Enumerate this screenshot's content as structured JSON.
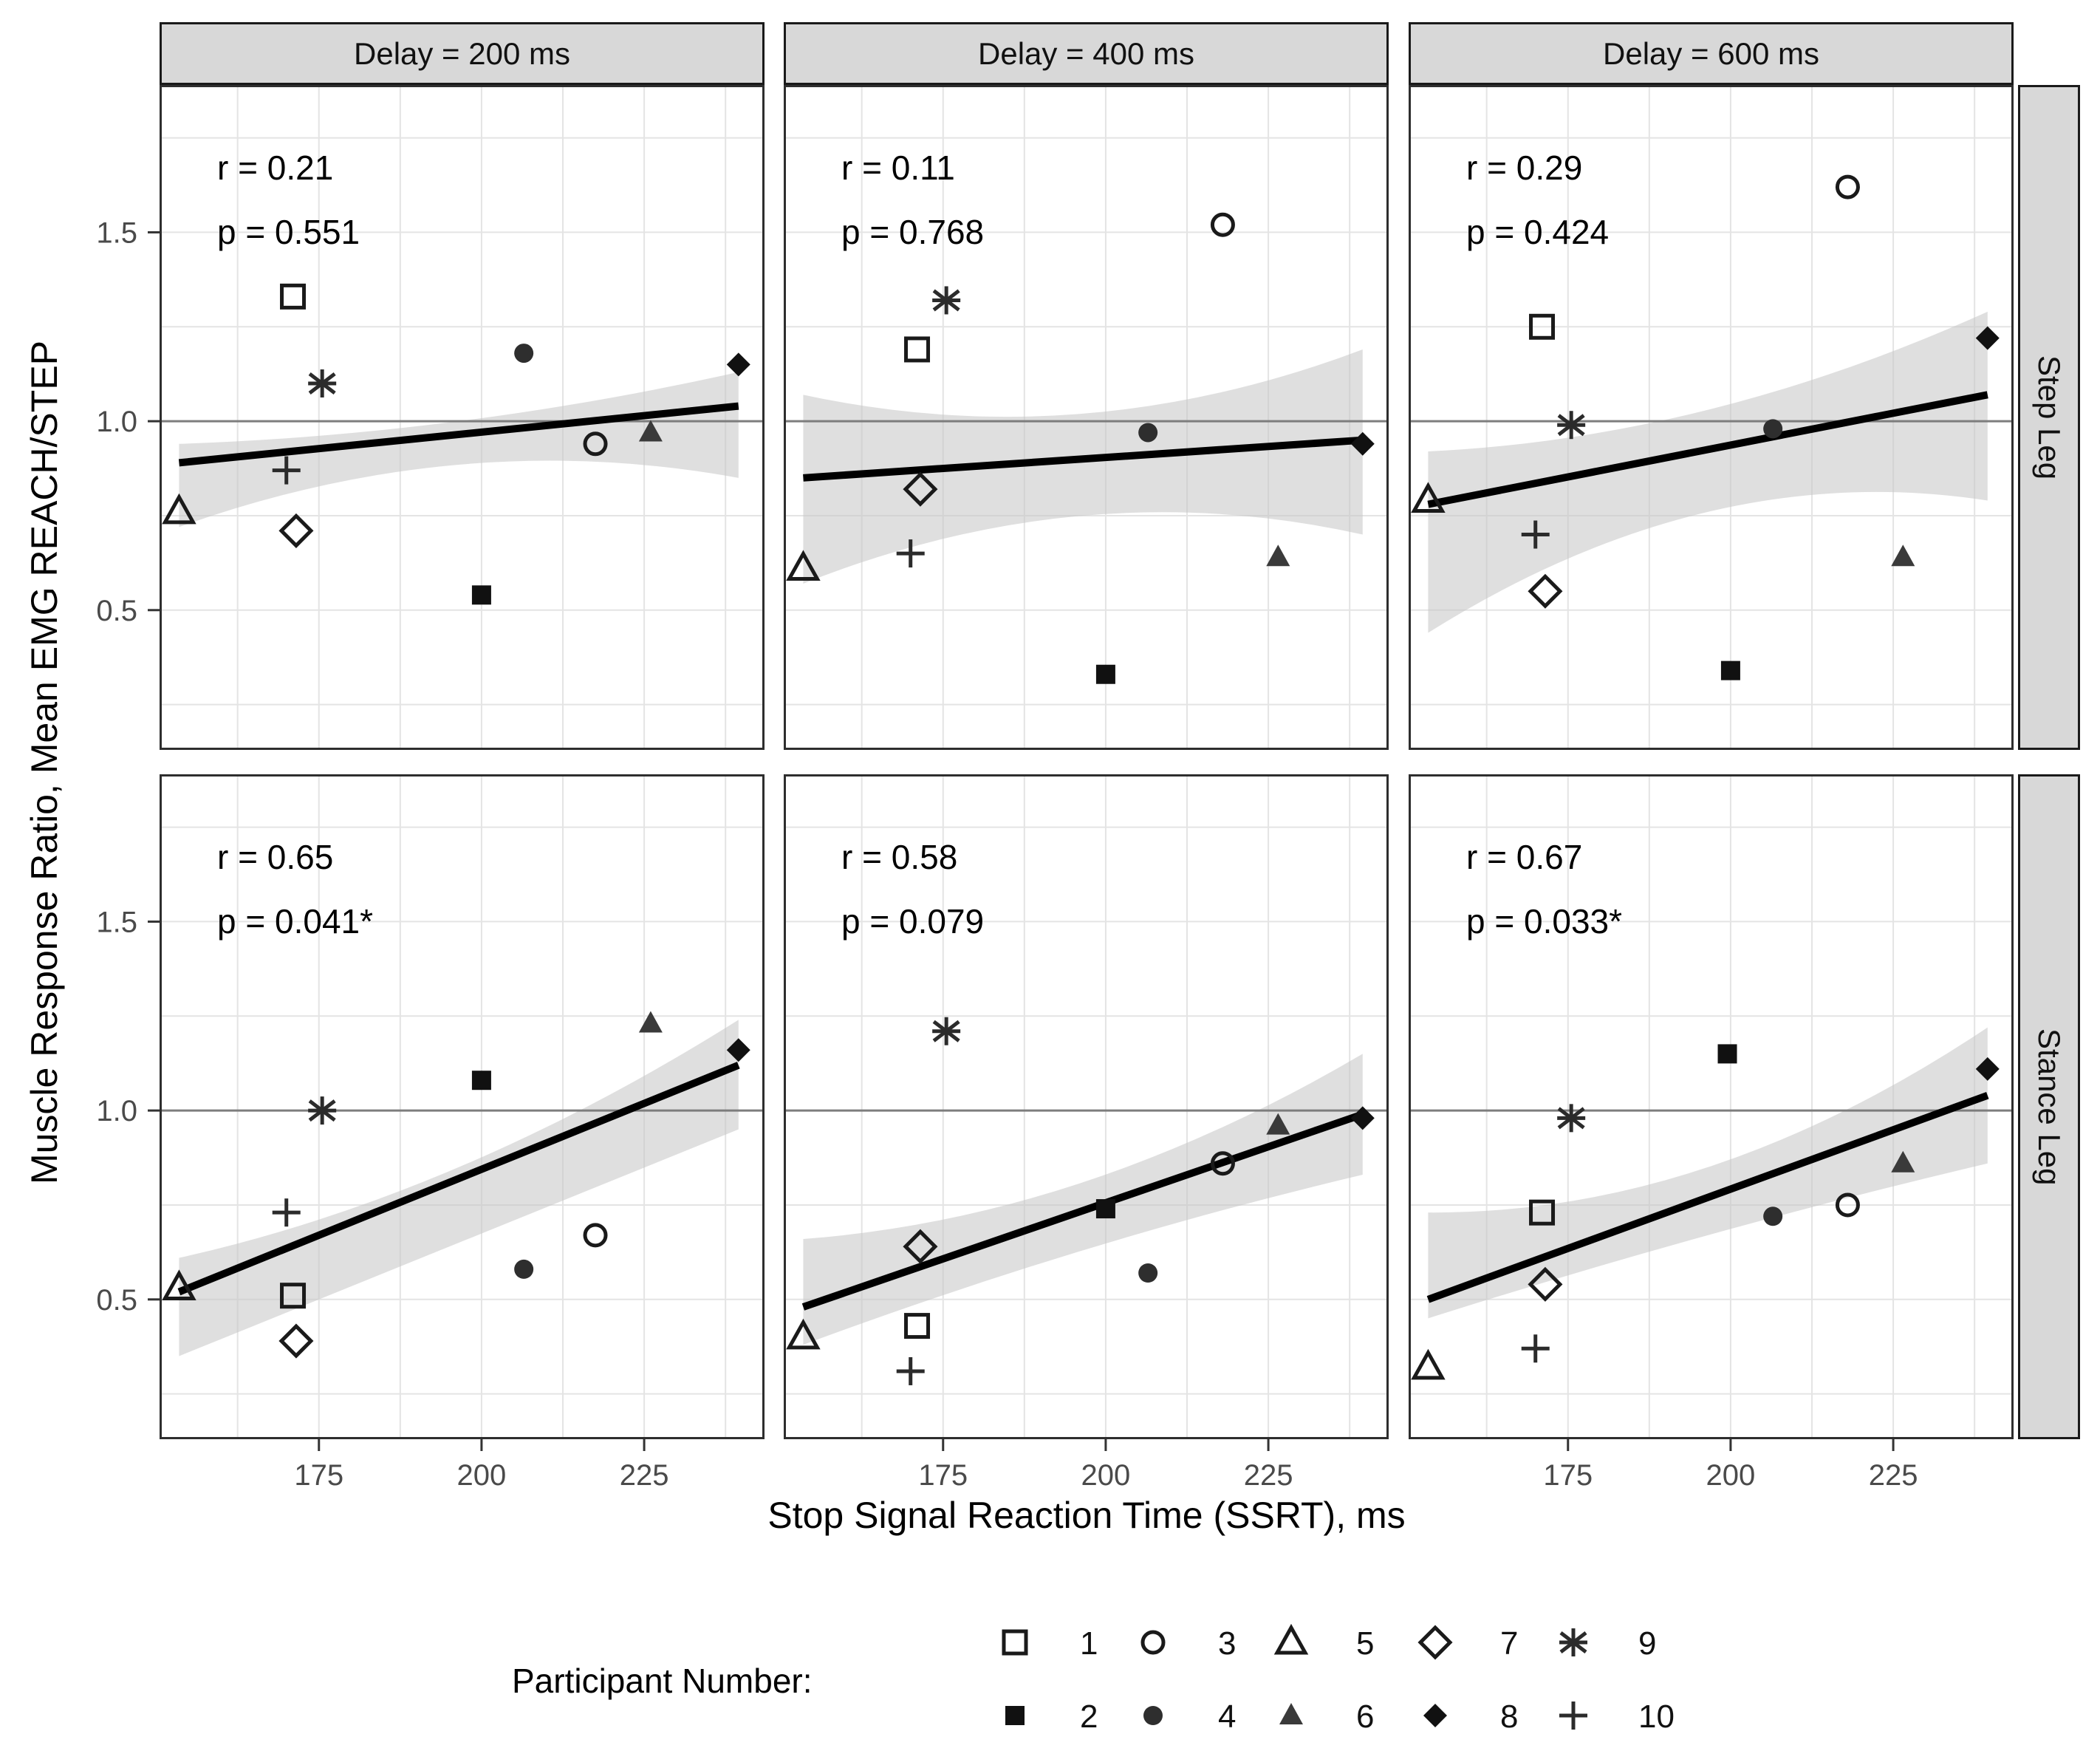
{
  "legend": {
    "title": "Participant Number:",
    "rows": [
      [
        {
          "marker": "open-square",
          "label": "1"
        },
        {
          "marker": "open-circle",
          "label": "3"
        },
        {
          "marker": "open-triangle",
          "label": "5"
        },
        {
          "marker": "open-diamond",
          "label": "7"
        },
        {
          "marker": "asterisk",
          "label": "9"
        }
      ],
      [
        {
          "marker": "filled-square",
          "label": "2"
        },
        {
          "marker": "filled-circle",
          "label": "4"
        },
        {
          "marker": "filled-triangle",
          "label": "6"
        },
        {
          "marker": "filled-diamond",
          "label": "8"
        },
        {
          "marker": "plus",
          "label": "10"
        }
      ]
    ]
  },
  "chart_data": {
    "type": "scatter",
    "facet_cols": [
      "Delay = 200 ms",
      "Delay = 400 ms",
      "Delay = 600 ms"
    ],
    "facet_rows": [
      "Step Leg",
      "Stance Leg"
    ],
    "xlabel": "Stop Signal Reaction Time (SSRT), ms",
    "ylabel": "Muscle Response Ratio, Mean EMG REACH/STEP",
    "xlim": [
      150.5,
      243.5
    ],
    "ylim": [
      0.13,
      1.89
    ],
    "x_ticks": [
      175,
      200,
      225
    ],
    "y_ticks": [
      0.5,
      1.0,
      1.5
    ],
    "x_gridlines": [
      162.5,
      175,
      187.5,
      200,
      212.5,
      225,
      237.5
    ],
    "y_gridlines": [
      0.25,
      0.5,
      0.75,
      1.0,
      1.25,
      1.5,
      1.75
    ],
    "reference_line_y": 1.0,
    "smooth_span": [
      153.5,
      239.5
    ],
    "legend_title": "Participant Number:",
    "legend_position": "bottom",
    "grid": true,
    "marker_by_participant": {
      "1": "open-square",
      "2": "filled-square",
      "3": "open-circle",
      "4": "filled-circle",
      "5": "open-triangle",
      "6": "filled-triangle",
      "7": "open-diamond",
      "8": "filled-diamond",
      "9": "asterisk",
      "10": "plus"
    },
    "panels": [
      {
        "facet_row": "Step Leg",
        "facet_col": "Delay = 200 ms",
        "r_label": "r = 0.21",
        "p_label": "p = 0.551",
        "regression": {
          "x": [
            153.5,
            239.5
          ],
          "y": [
            0.89,
            1.04
          ]
        },
        "ribbon": {
          "left": [
            0.72,
            0.94
          ],
          "mid": [
            0.885,
            1.0
          ],
          "right": [
            0.85,
            1.13
          ]
        },
        "points": [
          [
            1,
            171,
            1.33
          ],
          [
            2,
            200,
            0.54
          ],
          [
            3,
            217.5,
            0.94
          ],
          [
            4,
            206.5,
            1.18
          ],
          [
            5,
            153.5,
            0.76
          ],
          [
            6,
            226,
            0.97
          ],
          [
            7,
            171.5,
            0.71
          ],
          [
            8,
            239.5,
            1.15
          ],
          [
            9,
            175.5,
            1.1
          ],
          [
            10,
            170,
            0.87
          ]
        ]
      },
      {
        "facet_row": "Step Leg",
        "facet_col": "Delay = 400 ms",
        "r_label": "r = 0.11",
        "p_label": "p = 0.768",
        "regression": {
          "x": [
            153.5,
            239.5
          ],
          "y": [
            0.85,
            0.95
          ]
        },
        "ribbon": {
          "left": [
            0.57,
            1.07
          ],
          "mid": [
            0.75,
            1.02
          ],
          "right": [
            0.7,
            1.19
          ]
        },
        "points": [
          [
            1,
            171,
            1.19
          ],
          [
            2,
            200,
            0.33
          ],
          [
            3,
            218,
            1.52
          ],
          [
            4,
            206.5,
            0.97
          ],
          [
            5,
            153.5,
            0.61
          ],
          [
            6,
            226.5,
            0.64
          ],
          [
            7,
            171.5,
            0.82
          ],
          [
            8,
            239.5,
            0.94
          ],
          [
            9,
            175.5,
            1.32
          ],
          [
            10,
            170,
            0.65
          ]
        ]
      },
      {
        "facet_row": "Step Leg",
        "facet_col": "Delay = 600 ms",
        "r_label": "r = 0.29",
        "p_label": "p = 0.424",
        "regression": {
          "x": [
            153.5,
            239.5
          ],
          "y": [
            0.78,
            1.07
          ]
        },
        "ribbon": {
          "left": [
            0.44,
            0.92
          ],
          "mid": [
            0.76,
            1.03
          ],
          "right": [
            0.79,
            1.29
          ]
        },
        "points": [
          [
            1,
            171,
            1.25
          ],
          [
            2,
            200,
            0.34
          ],
          [
            3,
            218,
            1.62
          ],
          [
            4,
            206.5,
            0.98
          ],
          [
            5,
            153.5,
            0.79
          ],
          [
            6,
            226.5,
            0.64
          ],
          [
            7,
            171.5,
            0.55
          ],
          [
            8,
            239.5,
            1.22
          ],
          [
            9,
            175.5,
            0.99
          ],
          [
            10,
            170,
            0.7
          ]
        ]
      },
      {
        "facet_row": "Stance Leg",
        "facet_col": "Delay = 200 ms",
        "r_label": "r = 0.65",
        "p_label": "p = 0.041*",
        "regression": {
          "x": [
            153.5,
            239.5
          ],
          "y": [
            0.52,
            1.12
          ]
        },
        "ribbon": {
          "left": [
            0.35,
            0.61
          ],
          "mid": [
            0.65,
            0.85
          ],
          "right": [
            0.95,
            1.24
          ]
        },
        "points": [
          [
            1,
            171,
            0.51
          ],
          [
            2,
            200,
            1.08
          ],
          [
            3,
            217.5,
            0.67
          ],
          [
            4,
            206.5,
            0.58
          ],
          [
            5,
            153.5,
            0.53
          ],
          [
            6,
            226,
            1.23
          ],
          [
            7,
            171.5,
            0.39
          ],
          [
            8,
            239.5,
            1.16
          ],
          [
            9,
            175.5,
            1.0
          ],
          [
            10,
            170,
            0.73
          ]
        ]
      },
      {
        "facet_row": "Stance Leg",
        "facet_col": "Delay = 400 ms",
        "r_label": "r = 0.58",
        "p_label": "p = 0.079",
        "regression": {
          "x": [
            153.5,
            239.5
          ],
          "y": [
            0.48,
            0.99
          ]
        },
        "ribbon": {
          "left": [
            0.38,
            0.66
          ],
          "mid": [
            0.63,
            0.81
          ],
          "right": [
            0.83,
            1.15
          ]
        },
        "points": [
          [
            1,
            171,
            0.43
          ],
          [
            2,
            200,
            0.74
          ],
          [
            3,
            218,
            0.86
          ],
          [
            4,
            206.5,
            0.57
          ],
          [
            5,
            153.5,
            0.4
          ],
          [
            6,
            226.5,
            0.96
          ],
          [
            7,
            171.5,
            0.64
          ],
          [
            8,
            239.5,
            0.98
          ],
          [
            9,
            175.5,
            1.21
          ],
          [
            10,
            170,
            0.31
          ]
        ]
      },
      {
        "facet_row": "Stance Leg",
        "facet_col": "Delay = 600 ms",
        "r_label": "r = 0.67",
        "p_label": "p = 0.033*",
        "regression": {
          "x": [
            153.5,
            239.5
          ],
          "y": [
            0.5,
            1.04
          ]
        },
        "ribbon": {
          "left": [
            0.45,
            0.73
          ],
          "mid": [
            0.67,
            0.85
          ],
          "right": [
            0.86,
            1.22
          ]
        },
        "points": [
          [
            1,
            171,
            0.73
          ],
          [
            2,
            199.5,
            1.15
          ],
          [
            3,
            218,
            0.75
          ],
          [
            4,
            206.5,
            0.72
          ],
          [
            5,
            153.5,
            0.32
          ],
          [
            6,
            226.5,
            0.86
          ],
          [
            7,
            171.5,
            0.54
          ],
          [
            8,
            239.5,
            1.11
          ],
          [
            9,
            175.5,
            0.98
          ],
          [
            10,
            170,
            0.37
          ]
        ]
      }
    ]
  }
}
